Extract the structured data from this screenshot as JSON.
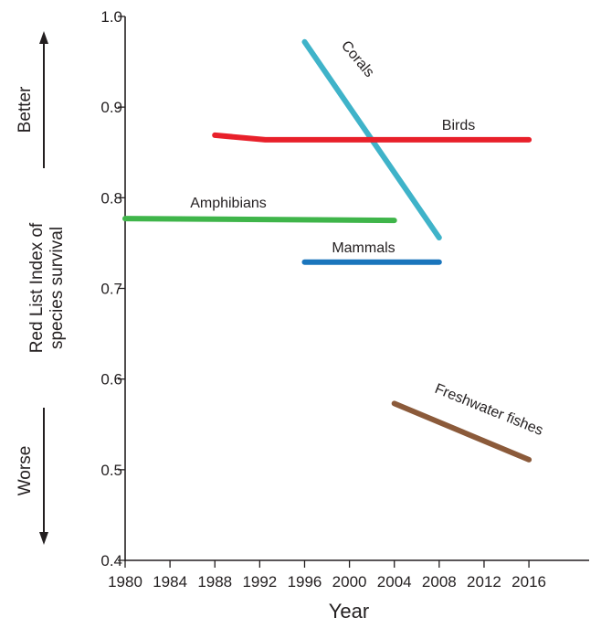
{
  "chart_data": {
    "type": "line",
    "xlabel": "Year",
    "ylabel": [
      "Red List Index of",
      "species survival"
    ],
    "better_label": "Better",
    "worse_label": "Worse",
    "xlim": [
      1980,
      2017
    ],
    "ylim": [
      0.4,
      1.0
    ],
    "xticks": [
      1980,
      1984,
      1988,
      1992,
      1996,
      2000,
      2004,
      2008,
      2012,
      2016
    ],
    "yticks": [
      "0.4",
      "0.5",
      "0.6",
      "0.7",
      "0.8",
      "0.9",
      "1.0"
    ],
    "grid": false,
    "series": [
      {
        "name": "Corals",
        "color": "#3fb3c9",
        "points": [
          [
            1996,
            0.972
          ],
          [
            2008,
            0.756
          ]
        ]
      },
      {
        "name": "Birds",
        "color": "#e8202a",
        "points": [
          [
            1988,
            0.869
          ],
          [
            1992.5,
            0.864
          ],
          [
            2016,
            0.864
          ]
        ]
      },
      {
        "name": "Amphibians",
        "color": "#3fb54a",
        "points": [
          [
            1980,
            0.777
          ],
          [
            2004,
            0.775
          ]
        ]
      },
      {
        "name": "Mammals",
        "color": "#1a75bc",
        "points": [
          [
            1996,
            0.729
          ],
          [
            2008,
            0.729
          ]
        ]
      },
      {
        "name": "Freshwater fishes",
        "color": "#8b5a3a",
        "points": [
          [
            2004,
            0.573
          ],
          [
            2016,
            0.511
          ]
        ]
      }
    ]
  }
}
